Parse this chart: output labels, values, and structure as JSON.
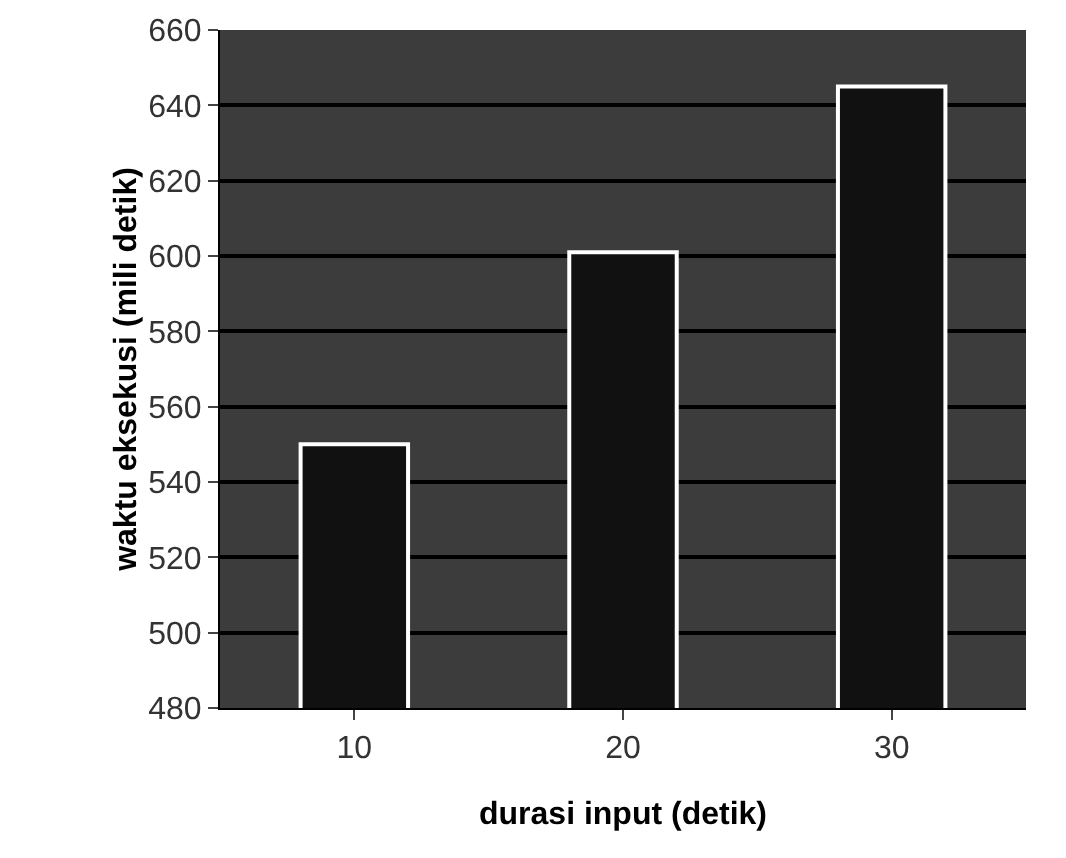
{
  "chart_data": {
    "type": "bar",
    "xlabel": "durasi input (detik)",
    "ylabel": "waktu eksekusi (mili detik)",
    "categories": [
      "10",
      "20",
      "30"
    ],
    "values": [
      550,
      601,
      645
    ],
    "color": "#111111",
    "ylim": [
      480,
      660
    ],
    "yticks": [
      480,
      500,
      520,
      540,
      560,
      580,
      600,
      620,
      640,
      660
    ],
    "grid": "y"
  }
}
